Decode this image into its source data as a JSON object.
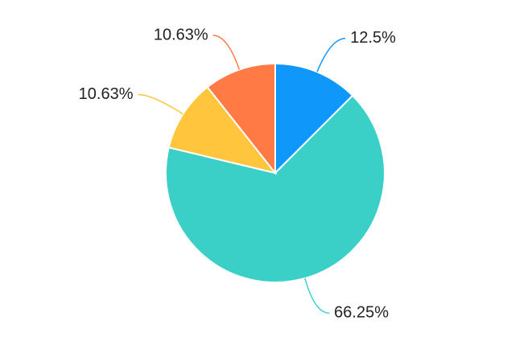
{
  "chart_data": {
    "type": "pie",
    "values": [
      12.5,
      66.25,
      10.63,
      10.63
    ],
    "value_labels": [
      "12.5%",
      "66.25%",
      "10.63%",
      "10.63%"
    ],
    "colors": [
      "#0f98f9",
      "#3ad0c8",
      "#ffc53d",
      "#ff7a45"
    ]
  }
}
